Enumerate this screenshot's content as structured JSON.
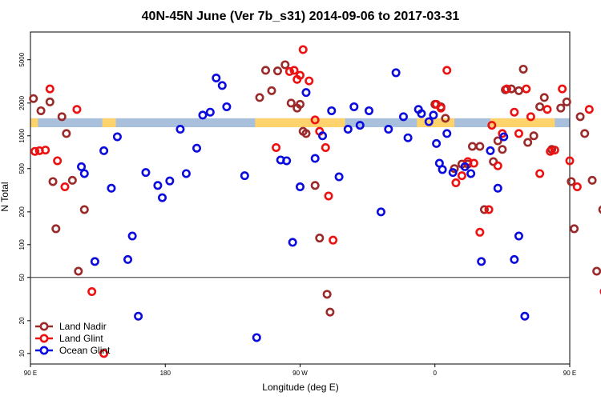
{
  "chart_data": {
    "type": "scatter",
    "title": "40N-45N June (Ver 7b_s31)   2014-09-06 to 2017-03-31",
    "xlabel": "Longitude (deg E)",
    "ylabel": "N Total",
    "x_range": [
      90,
      450
    ],
    "x_ticks": [
      {
        "value": 90,
        "label": "90 E"
      },
      {
        "value": 180,
        "label": "180"
      },
      {
        "value": 270,
        "label": "90 W"
      },
      {
        "value": 360,
        "label": "0"
      },
      {
        "value": 450,
        "label": "90 E"
      },
      {
        "value": 540,
        "label": "180"
      }
    ],
    "y_scale": "log",
    "y_ticks": [
      10,
      20,
      50,
      100,
      200,
      500,
      1000,
      2000,
      5000
    ],
    "y_range": [
      8,
      9000
    ],
    "threshold_line": 50,
    "land_ocean_strip": {
      "y_low": 1200,
      "y_high": 1450,
      "land_color": "#ffd36b",
      "ocean_color": "#a8c0dc",
      "land_segments": [
        [
          90,
          95
        ],
        [
          138,
          147
        ],
        [
          240,
          300
        ],
        [
          348,
          373
        ],
        [
          397,
          440
        ]
      ]
    },
    "legend": {
      "placement": "bottom-left"
    },
    "series": [
      {
        "name": "Land Nadir",
        "color": "#9b2a2a",
        "points": [
          [
            92,
            2200
          ],
          [
            97,
            1700
          ],
          [
            103,
            2050
          ],
          [
            105,
            380
          ],
          [
            107,
            140
          ],
          [
            111,
            1500
          ],
          [
            114,
            1050
          ],
          [
            118,
            390
          ],
          [
            122,
            57
          ],
          [
            126,
            210
          ],
          [
            243,
            2250
          ],
          [
            247,
            4000
          ],
          [
            251,
            2600
          ],
          [
            255,
            3950
          ],
          [
            260,
            4500
          ],
          [
            264,
            2000
          ],
          [
            268,
            1800
          ],
          [
            270,
            1950
          ],
          [
            272,
            1100
          ],
          [
            274,
            1050
          ],
          [
            280,
            350
          ],
          [
            283,
            115
          ],
          [
            288,
            35
          ],
          [
            290,
            24
          ],
          [
            360,
            1950
          ],
          [
            364,
            1850
          ],
          [
            367,
            1450
          ],
          [
            373,
            500
          ],
          [
            378,
            550
          ],
          [
            382,
            550
          ],
          [
            385,
            800
          ],
          [
            390,
            800
          ],
          [
            393,
            210
          ],
          [
            399,
            580
          ],
          [
            402,
            900
          ],
          [
            405,
            750
          ],
          [
            407,
            2650
          ],
          [
            411,
            2700
          ],
          [
            416,
            2600
          ],
          [
            419,
            4100
          ],
          [
            422,
            870
          ],
          [
            426,
            1000
          ],
          [
            430,
            1850
          ],
          [
            433,
            2250
          ],
          [
            438,
            750
          ],
          [
            444,
            1800
          ],
          [
            448,
            2050
          ],
          [
            451,
            380
          ],
          [
            453,
            140
          ],
          [
            457,
            1500
          ],
          [
            460,
            1050
          ],
          [
            465,
            390
          ],
          [
            468,
            57
          ],
          [
            472,
            210
          ],
          [
            478,
            10
          ]
        ]
      },
      {
        "name": "Land Glint",
        "color": "#ee1111",
        "points": [
          [
            93,
            720
          ],
          [
            96,
            730
          ],
          [
            100,
            740
          ],
          [
            103,
            2700
          ],
          [
            108,
            590
          ],
          [
            113,
            340
          ],
          [
            121,
            1750
          ],
          [
            131,
            37
          ],
          [
            139,
            10
          ],
          [
            254,
            780
          ],
          [
            263,
            3900
          ],
          [
            266,
            4000
          ],
          [
            268,
            3300
          ],
          [
            270,
            3600
          ],
          [
            272,
            6200
          ],
          [
            276,
            3200
          ],
          [
            280,
            1400
          ],
          [
            283,
            1100
          ],
          [
            287,
            780
          ],
          [
            289,
            280
          ],
          [
            292,
            110
          ],
          [
            361,
            1950
          ],
          [
            364,
            1800
          ],
          [
            368,
            4000
          ],
          [
            374,
            370
          ],
          [
            378,
            430
          ],
          [
            382,
            580
          ],
          [
            386,
            560
          ],
          [
            390,
            130
          ],
          [
            396,
            210
          ],
          [
            398,
            1250
          ],
          [
            402,
            530
          ],
          [
            405,
            1050
          ],
          [
            408,
            2700
          ],
          [
            413,
            1650
          ],
          [
            416,
            1050
          ],
          [
            421,
            2700
          ],
          [
            424,
            1500
          ],
          [
            430,
            450
          ],
          [
            435,
            1750
          ],
          [
            437,
            720
          ],
          [
            440,
            740
          ],
          [
            445,
            2700
          ],
          [
            450,
            590
          ],
          [
            455,
            340
          ],
          [
            463,
            1750
          ],
          [
            473,
            37
          ]
        ]
      },
      {
        "name": "Ocean Glint",
        "color": "#0b0bdd",
        "points": [
          [
            124,
            520
          ],
          [
            126,
            450
          ],
          [
            133,
            70
          ],
          [
            139,
            730
          ],
          [
            144,
            330
          ],
          [
            148,
            980
          ],
          [
            155,
            73
          ],
          [
            158,
            120
          ],
          [
            162,
            22
          ],
          [
            167,
            460
          ],
          [
            175,
            350
          ],
          [
            178,
            270
          ],
          [
            183,
            385
          ],
          [
            190,
            1150
          ],
          [
            194,
            450
          ],
          [
            201,
            770
          ],
          [
            205,
            1550
          ],
          [
            210,
            1650
          ],
          [
            214,
            3400
          ],
          [
            218,
            2900
          ],
          [
            221,
            1850
          ],
          [
            233,
            430
          ],
          [
            241,
            14
          ],
          [
            257,
            600
          ],
          [
            261,
            590
          ],
          [
            265,
            105
          ],
          [
            270,
            340
          ],
          [
            274,
            2500
          ],
          [
            280,
            620
          ],
          [
            285,
            1000
          ],
          [
            291,
            1700
          ],
          [
            296,
            420
          ],
          [
            302,
            1150
          ],
          [
            306,
            1850
          ],
          [
            310,
            1250
          ],
          [
            316,
            1700
          ],
          [
            324,
            200
          ],
          [
            329,
            1150
          ],
          [
            334,
            3800
          ],
          [
            339,
            1500
          ],
          [
            342,
            960
          ],
          [
            349,
            1750
          ],
          [
            351,
            1600
          ],
          [
            356,
            1350
          ],
          [
            359,
            1550
          ],
          [
            361,
            850
          ],
          [
            363,
            560
          ],
          [
            365,
            490
          ],
          [
            368,
            1050
          ],
          [
            372,
            460
          ],
          [
            380,
            520
          ],
          [
            384,
            450
          ],
          [
            391,
            70
          ],
          [
            397,
            730
          ],
          [
            402,
            330
          ],
          [
            406,
            980
          ],
          [
            413,
            73
          ],
          [
            416,
            120
          ],
          [
            420,
            22
          ]
        ]
      }
    ]
  }
}
